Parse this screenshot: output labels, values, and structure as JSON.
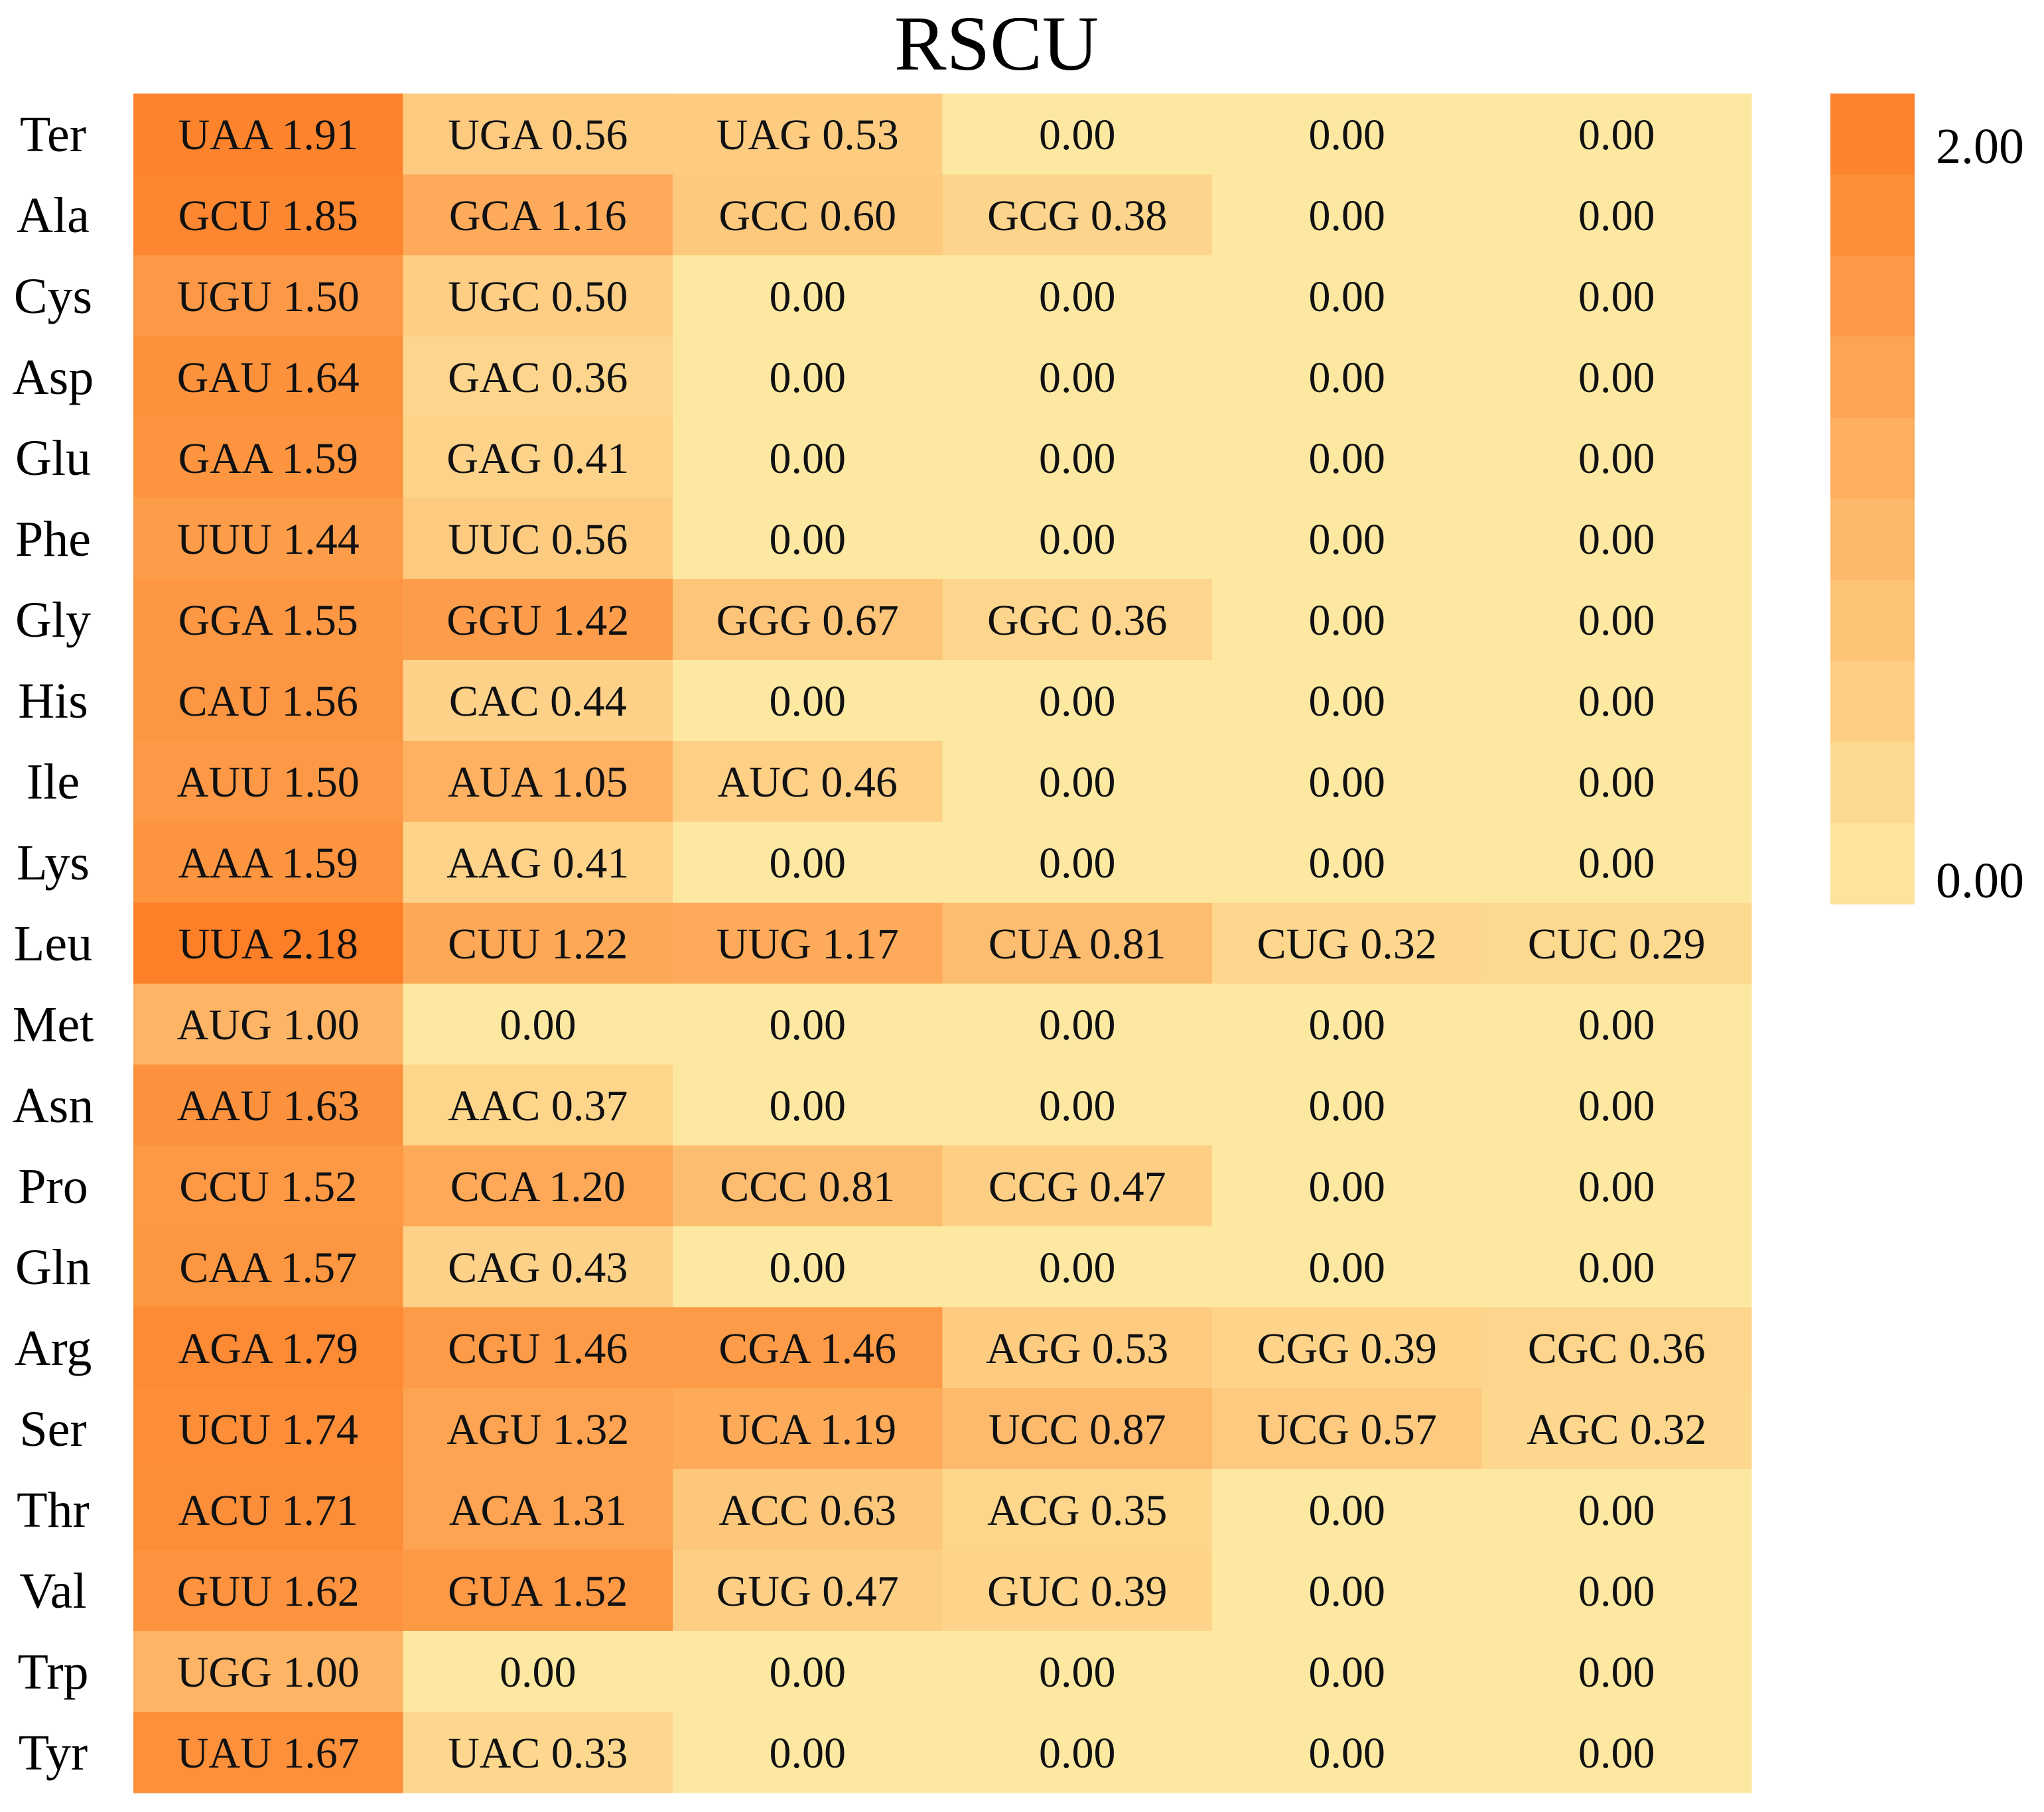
{
  "chart_data": {
    "type": "heatmap",
    "title": "RSCU",
    "rows": [
      {
        "aa": "Ter",
        "cells": [
          {
            "codon": "UAA",
            "value": 1.91
          },
          {
            "codon": "UGA",
            "value": 0.56
          },
          {
            "codon": "UAG",
            "value": 0.53
          },
          {
            "codon": "",
            "value": 0.0
          },
          {
            "codon": "",
            "value": 0.0
          },
          {
            "codon": "",
            "value": 0.0
          }
        ]
      },
      {
        "aa": "Ala",
        "cells": [
          {
            "codon": "GCU",
            "value": 1.85
          },
          {
            "codon": "GCA",
            "value": 1.16
          },
          {
            "codon": "GCC",
            "value": 0.6
          },
          {
            "codon": "GCG",
            "value": 0.38
          },
          {
            "codon": "",
            "value": 0.0
          },
          {
            "codon": "",
            "value": 0.0
          }
        ]
      },
      {
        "aa": "Cys",
        "cells": [
          {
            "codon": "UGU",
            "value": 1.5
          },
          {
            "codon": "UGC",
            "value": 0.5
          },
          {
            "codon": "",
            "value": 0.0
          },
          {
            "codon": "",
            "value": 0.0
          },
          {
            "codon": "",
            "value": 0.0
          },
          {
            "codon": "",
            "value": 0.0
          }
        ]
      },
      {
        "aa": "Asp",
        "cells": [
          {
            "codon": "GAU",
            "value": 1.64
          },
          {
            "codon": "GAC",
            "value": 0.36
          },
          {
            "codon": "",
            "value": 0.0
          },
          {
            "codon": "",
            "value": 0.0
          },
          {
            "codon": "",
            "value": 0.0
          },
          {
            "codon": "",
            "value": 0.0
          }
        ]
      },
      {
        "aa": "Glu",
        "cells": [
          {
            "codon": "GAA",
            "value": 1.59
          },
          {
            "codon": "GAG",
            "value": 0.41
          },
          {
            "codon": "",
            "value": 0.0
          },
          {
            "codon": "",
            "value": 0.0
          },
          {
            "codon": "",
            "value": 0.0
          },
          {
            "codon": "",
            "value": 0.0
          }
        ]
      },
      {
        "aa": "Phe",
        "cells": [
          {
            "codon": "UUU",
            "value": 1.44
          },
          {
            "codon": "UUC",
            "value": 0.56
          },
          {
            "codon": "",
            "value": 0.0
          },
          {
            "codon": "",
            "value": 0.0
          },
          {
            "codon": "",
            "value": 0.0
          },
          {
            "codon": "",
            "value": 0.0
          }
        ]
      },
      {
        "aa": "Gly",
        "cells": [
          {
            "codon": "GGA",
            "value": 1.55
          },
          {
            "codon": "GGU",
            "value": 1.42
          },
          {
            "codon": "GGG",
            "value": 0.67
          },
          {
            "codon": "GGC",
            "value": 0.36
          },
          {
            "codon": "",
            "value": 0.0
          },
          {
            "codon": "",
            "value": 0.0
          }
        ]
      },
      {
        "aa": "His",
        "cells": [
          {
            "codon": "CAU",
            "value": 1.56
          },
          {
            "codon": "CAC",
            "value": 0.44
          },
          {
            "codon": "",
            "value": 0.0
          },
          {
            "codon": "",
            "value": 0.0
          },
          {
            "codon": "",
            "value": 0.0
          },
          {
            "codon": "",
            "value": 0.0
          }
        ]
      },
      {
        "aa": "Ile",
        "cells": [
          {
            "codon": "AUU",
            "value": 1.5
          },
          {
            "codon": "AUA",
            "value": 1.05
          },
          {
            "codon": "AUC",
            "value": 0.46
          },
          {
            "codon": "",
            "value": 0.0
          },
          {
            "codon": "",
            "value": 0.0
          },
          {
            "codon": "",
            "value": 0.0
          }
        ]
      },
      {
        "aa": "Lys",
        "cells": [
          {
            "codon": "AAA",
            "value": 1.59
          },
          {
            "codon": "AAG",
            "value": 0.41
          },
          {
            "codon": "",
            "value": 0.0
          },
          {
            "codon": "",
            "value": 0.0
          },
          {
            "codon": "",
            "value": 0.0
          },
          {
            "codon": "",
            "value": 0.0
          }
        ]
      },
      {
        "aa": "Leu",
        "cells": [
          {
            "codon": "UUA",
            "value": 2.18
          },
          {
            "codon": "CUU",
            "value": 1.22
          },
          {
            "codon": "UUG",
            "value": 1.17
          },
          {
            "codon": "CUA",
            "value": 0.81
          },
          {
            "codon": "CUG",
            "value": 0.32
          },
          {
            "codon": "CUC",
            "value": 0.29
          }
        ]
      },
      {
        "aa": "Met",
        "cells": [
          {
            "codon": "AUG",
            "value": 1.0
          },
          {
            "codon": "",
            "value": 0.0
          },
          {
            "codon": "",
            "value": 0.0
          },
          {
            "codon": "",
            "value": 0.0
          },
          {
            "codon": "",
            "value": 0.0
          },
          {
            "codon": "",
            "value": 0.0
          }
        ]
      },
      {
        "aa": "Asn",
        "cells": [
          {
            "codon": "AAU",
            "value": 1.63
          },
          {
            "codon": "AAC",
            "value": 0.37
          },
          {
            "codon": "",
            "value": 0.0
          },
          {
            "codon": "",
            "value": 0.0
          },
          {
            "codon": "",
            "value": 0.0
          },
          {
            "codon": "",
            "value": 0.0
          }
        ]
      },
      {
        "aa": "Pro",
        "cells": [
          {
            "codon": "CCU",
            "value": 1.52
          },
          {
            "codon": "CCA",
            "value": 1.2
          },
          {
            "codon": "CCC",
            "value": 0.81
          },
          {
            "codon": "CCG",
            "value": 0.47
          },
          {
            "codon": "",
            "value": 0.0
          },
          {
            "codon": "",
            "value": 0.0
          }
        ]
      },
      {
        "aa": "Gln",
        "cells": [
          {
            "codon": "CAA",
            "value": 1.57
          },
          {
            "codon": "CAG",
            "value": 0.43
          },
          {
            "codon": "",
            "value": 0.0
          },
          {
            "codon": "",
            "value": 0.0
          },
          {
            "codon": "",
            "value": 0.0
          },
          {
            "codon": "",
            "value": 0.0
          }
        ]
      },
      {
        "aa": "Arg",
        "cells": [
          {
            "codon": "AGA",
            "value": 1.79
          },
          {
            "codon": "CGU",
            "value": 1.46
          },
          {
            "codon": "CGA",
            "value": 1.46
          },
          {
            "codon": "AGG",
            "value": 0.53
          },
          {
            "codon": "CGG",
            "value": 0.39
          },
          {
            "codon": "CGC",
            "value": 0.36
          }
        ]
      },
      {
        "aa": "Ser",
        "cells": [
          {
            "codon": "UCU",
            "value": 1.74
          },
          {
            "codon": "AGU",
            "value": 1.32
          },
          {
            "codon": "UCA",
            "value": 1.19
          },
          {
            "codon": "UCC",
            "value": 0.87
          },
          {
            "codon": "UCG",
            "value": 0.57
          },
          {
            "codon": "AGC",
            "value": 0.32
          }
        ]
      },
      {
        "aa": "Thr",
        "cells": [
          {
            "codon": "ACU",
            "value": 1.71
          },
          {
            "codon": "ACA",
            "value": 1.31
          },
          {
            "codon": "ACC",
            "value": 0.63
          },
          {
            "codon": "ACG",
            "value": 0.35
          },
          {
            "codon": "",
            "value": 0.0
          },
          {
            "codon": "",
            "value": 0.0
          }
        ]
      },
      {
        "aa": "Val",
        "cells": [
          {
            "codon": "GUU",
            "value": 1.62
          },
          {
            "codon": "GUA",
            "value": 1.52
          },
          {
            "codon": "GUG",
            "value": 0.47
          },
          {
            "codon": "GUC",
            "value": 0.39
          },
          {
            "codon": "",
            "value": 0.0
          },
          {
            "codon": "",
            "value": 0.0
          }
        ]
      },
      {
        "aa": "Trp",
        "cells": [
          {
            "codon": "UGG",
            "value": 1.0
          },
          {
            "codon": "",
            "value": 0.0
          },
          {
            "codon": "",
            "value": 0.0
          },
          {
            "codon": "",
            "value": 0.0
          },
          {
            "codon": "",
            "value": 0.0
          },
          {
            "codon": "",
            "value": 0.0
          }
        ]
      },
      {
        "aa": "Tyr",
        "cells": [
          {
            "codon": "UAU",
            "value": 1.67
          },
          {
            "codon": "UAC",
            "value": 0.33
          },
          {
            "codon": "",
            "value": 0.0
          },
          {
            "codon": "",
            "value": 0.0
          },
          {
            "codon": "",
            "value": 0.0
          },
          {
            "codon": "",
            "value": 0.0
          }
        ]
      }
    ],
    "color_scale": {
      "min": 0.0,
      "max": 2.0,
      "steps": 10,
      "low_color": "#fde8a2",
      "high_color": "#fd7f27",
      "tick_labels": [
        "2.00",
        "0.00"
      ]
    },
    "grid": false,
    "legend": "right"
  }
}
